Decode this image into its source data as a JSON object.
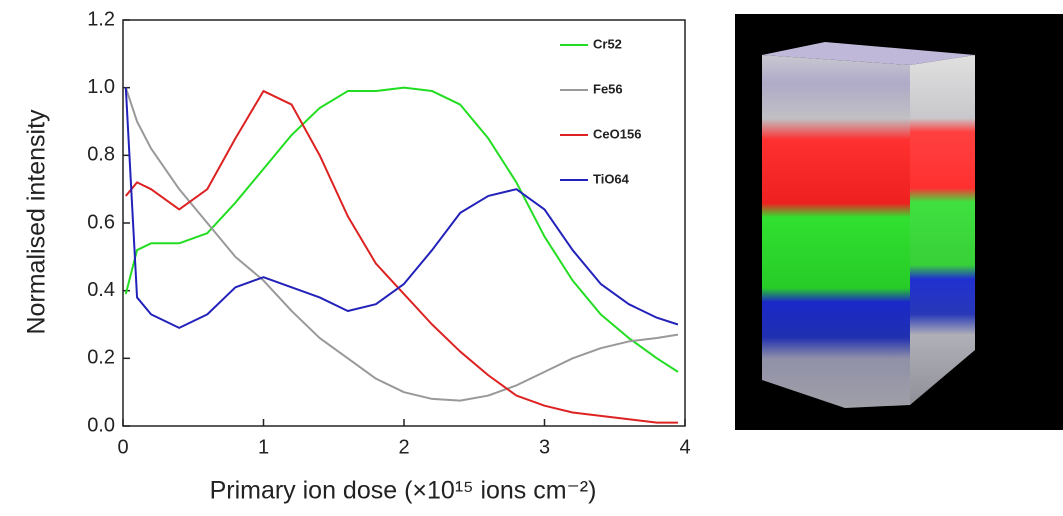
{
  "chart_data": {
    "type": "line",
    "xlabel": "Primary ion dose (×10¹⁵ ions cm⁻²)",
    "ylabel": "Normalised intensity",
    "x": [
      0.02,
      0.1,
      0.2,
      0.4,
      0.6,
      0.8,
      1.0,
      1.2,
      1.4,
      1.6,
      1.8,
      2.0,
      2.2,
      2.4,
      2.6,
      2.8,
      3.0,
      3.2,
      3.4,
      3.6,
      3.8,
      3.95
    ],
    "series": [
      {
        "name": "Cr52",
        "color": "#22dd22",
        "values": [
          0.39,
          0.52,
          0.54,
          0.54,
          0.57,
          0.66,
          0.76,
          0.86,
          0.94,
          0.99,
          0.99,
          1.0,
          0.99,
          0.95,
          0.85,
          0.72,
          0.56,
          0.43,
          0.33,
          0.26,
          0.2,
          0.16
        ]
      },
      {
        "name": "Fe56",
        "color": "#999999",
        "values": [
          1.0,
          0.9,
          0.82,
          0.7,
          0.6,
          0.5,
          0.43,
          0.34,
          0.26,
          0.2,
          0.14,
          0.1,
          0.08,
          0.075,
          0.09,
          0.12,
          0.16,
          0.2,
          0.23,
          0.25,
          0.26,
          0.27
        ]
      },
      {
        "name": "CeO156",
        "color": "#dd2222",
        "values": [
          0.68,
          0.72,
          0.7,
          0.64,
          0.7,
          0.85,
          0.99,
          0.95,
          0.8,
          0.62,
          0.48,
          0.39,
          0.3,
          0.22,
          0.15,
          0.09,
          0.06,
          0.04,
          0.03,
          0.02,
          0.01,
          0.01
        ]
      },
      {
        "name": "TiO64",
        "color": "#2222bb",
        "values": [
          1.0,
          0.38,
          0.33,
          0.29,
          0.33,
          0.41,
          0.44,
          0.41,
          0.38,
          0.34,
          0.36,
          0.42,
          0.52,
          0.63,
          0.68,
          0.7,
          0.64,
          0.52,
          0.42,
          0.36,
          0.32,
          0.3
        ]
      }
    ],
    "xlim": [
      0,
      4
    ],
    "xticks": [
      0,
      1,
      2,
      3,
      4
    ],
    "ylim": [
      0,
      1.2
    ],
    "yticks": [
      {
        "value": 0,
        "label": "0.0"
      },
      0.2,
      0.4,
      0.6,
      0.8,
      {
        "value": 1,
        "label": "1.0"
      },
      1.2
    ],
    "legend": "upper right"
  }
}
